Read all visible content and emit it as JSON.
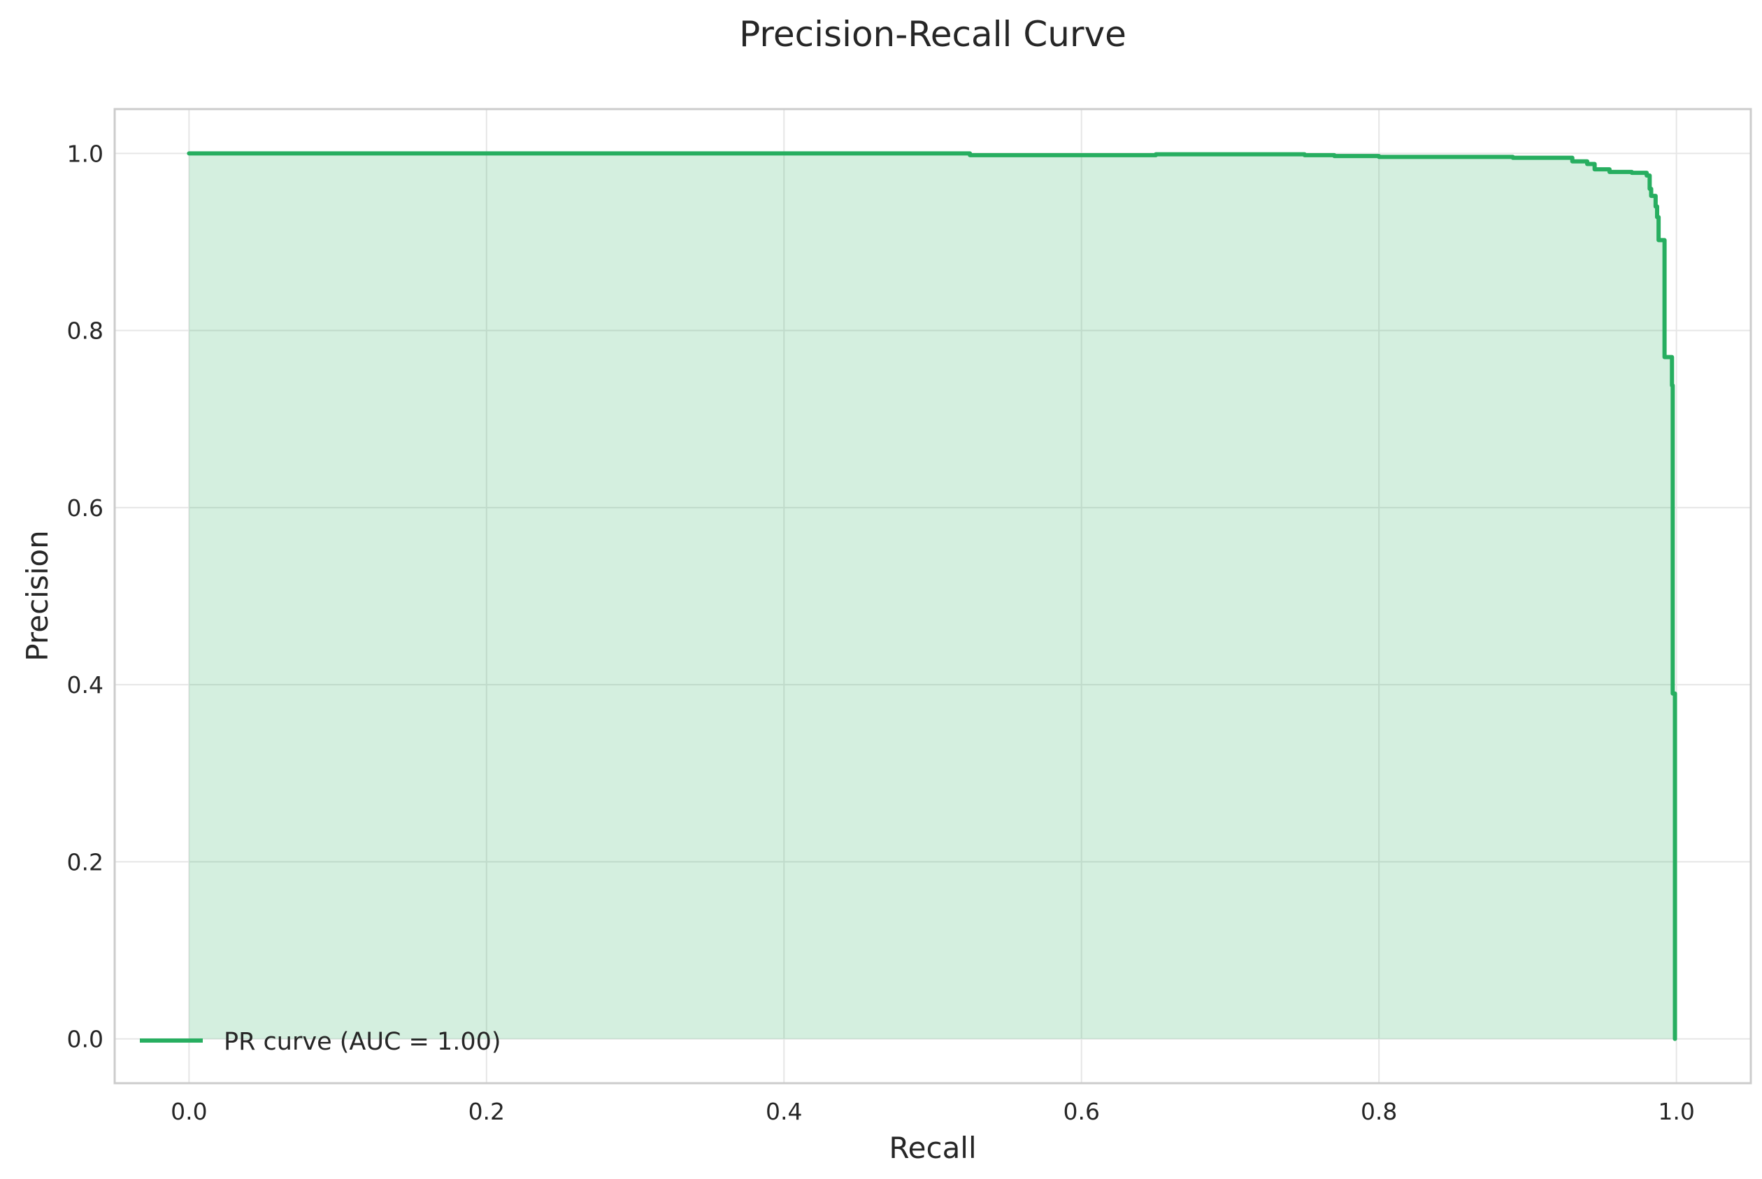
{
  "colors": {
    "curve": "#27ae60",
    "fill": "#27ae60",
    "fill_opacity": 0.2,
    "grid": "#e6e6e6",
    "spine": "#cccccc",
    "text": "#262626"
  },
  "chart_data": {
    "type": "area",
    "title": "Precision-Recall Curve",
    "xlabel": "Recall",
    "ylabel": "Precision",
    "xlim": [
      -0.05,
      1.05
    ],
    "ylim": [
      -0.05,
      1.05
    ],
    "xticks": [
      0.0,
      0.2,
      0.4,
      0.6,
      0.8,
      1.0
    ],
    "xtick_labels": [
      "0.0",
      "0.2",
      "0.4",
      "0.6",
      "0.8",
      "1.0"
    ],
    "yticks": [
      0.0,
      0.2,
      0.4,
      0.6,
      0.8,
      1.0
    ],
    "ytick_labels": [
      "0.0",
      "0.2",
      "0.4",
      "0.6",
      "0.8",
      "1.0"
    ],
    "grid": true,
    "legend_position": "lower-left",
    "series": [
      {
        "name": "PR curve (AUC = 1.00)",
        "step": true,
        "points": [
          [
            0.0,
            1.0
          ],
          [
            0.525,
            1.0
          ],
          [
            0.525,
            0.998
          ],
          [
            0.65,
            0.998
          ],
          [
            0.65,
            0.999
          ],
          [
            0.75,
            0.999
          ],
          [
            0.75,
            0.998
          ],
          [
            0.77,
            0.998
          ],
          [
            0.77,
            0.997
          ],
          [
            0.8,
            0.997
          ],
          [
            0.8,
            0.996
          ],
          [
            0.89,
            0.996
          ],
          [
            0.89,
            0.995
          ],
          [
            0.93,
            0.995
          ],
          [
            0.93,
            0.991
          ],
          [
            0.94,
            0.991
          ],
          [
            0.94,
            0.988
          ],
          [
            0.945,
            0.988
          ],
          [
            0.945,
            0.982
          ],
          [
            0.955,
            0.982
          ],
          [
            0.955,
            0.979
          ],
          [
            0.97,
            0.979
          ],
          [
            0.97,
            0.978
          ],
          [
            0.98,
            0.978
          ],
          [
            0.98,
            0.975
          ],
          [
            0.982,
            0.975
          ],
          [
            0.982,
            0.96
          ],
          [
            0.983,
            0.96
          ],
          [
            0.983,
            0.952
          ],
          [
            0.986,
            0.952
          ],
          [
            0.986,
            0.94
          ],
          [
            0.987,
            0.94
          ],
          [
            0.987,
            0.928
          ],
          [
            0.988,
            0.928
          ],
          [
            0.988,
            0.902
          ],
          [
            0.992,
            0.902
          ],
          [
            0.992,
            0.77
          ],
          [
            0.997,
            0.77
          ],
          [
            0.997,
            0.738
          ],
          [
            0.9975,
            0.738
          ],
          [
            0.9975,
            0.39
          ],
          [
            0.999,
            0.39
          ],
          [
            0.999,
            0.0
          ]
        ]
      }
    ]
  }
}
